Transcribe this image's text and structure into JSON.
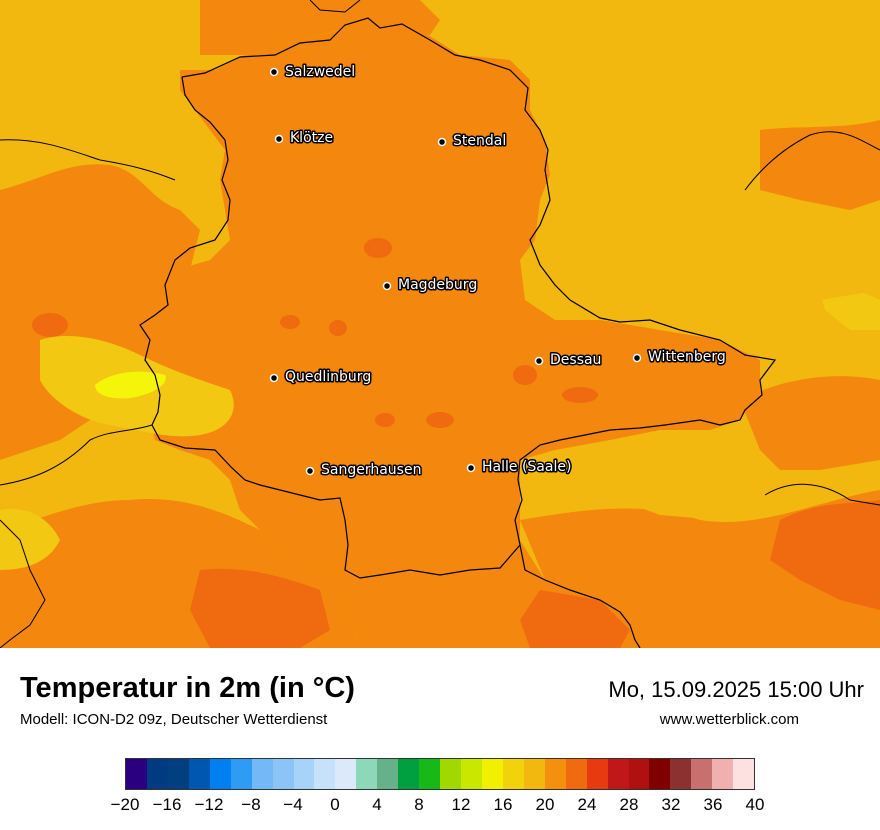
{
  "map": {
    "cities": [
      {
        "name": "Salzwedel"
      },
      {
        "name": "Klötze"
      },
      {
        "name": "Stendal"
      },
      {
        "name": "Magdeburg"
      },
      {
        "name": "Dessau"
      },
      {
        "name": "Wittenberg"
      },
      {
        "name": "Quedlinburg"
      },
      {
        "name": "Sangerhausen"
      },
      {
        "name": "Halle (Saale)"
      }
    ],
    "colors": {
      "background_yellow": "#f2b80f",
      "main_orange": "#f4870d",
      "dark_orange": "#f06a10",
      "light_yellow": "#f4d210",
      "bright_yellow": "#f5f50a",
      "border": "#000000"
    }
  },
  "footer": {
    "title": "Temperatur in 2m (in °C)",
    "subtitle": "Modell: ICON-D2 09z, Deutscher Wetterdienst",
    "datetime": "Mo, 15.09.2025 15:00 Uhr",
    "website": "www.wetterblick.com"
  },
  "legend": {
    "colors": [
      "#2b0080",
      "#003a80",
      "#003f80",
      "#0057b0",
      "#0080f0",
      "#2e9cf5",
      "#73b8f7",
      "#8cc4f7",
      "#a7d2fa",
      "#c8e1fb",
      "#dbe9fb",
      "#8cd8b8",
      "#66b08a",
      "#00a040",
      "#18b818",
      "#a0d800",
      "#c8e800",
      "#f0f000",
      "#f2d20a",
      "#f2b80f",
      "#f4900d",
      "#f06a10",
      "#e83a10",
      "#c01818",
      "#b01010",
      "#800000",
      "#8c3030",
      "#c87070",
      "#f0b0b0",
      "#fde0e0"
    ],
    "ticks": [
      "−20",
      "−16",
      "−12",
      "−8",
      "−4",
      "0",
      "4",
      "8",
      "12",
      "16",
      "20",
      "24",
      "28",
      "32",
      "36",
      "40"
    ]
  }
}
